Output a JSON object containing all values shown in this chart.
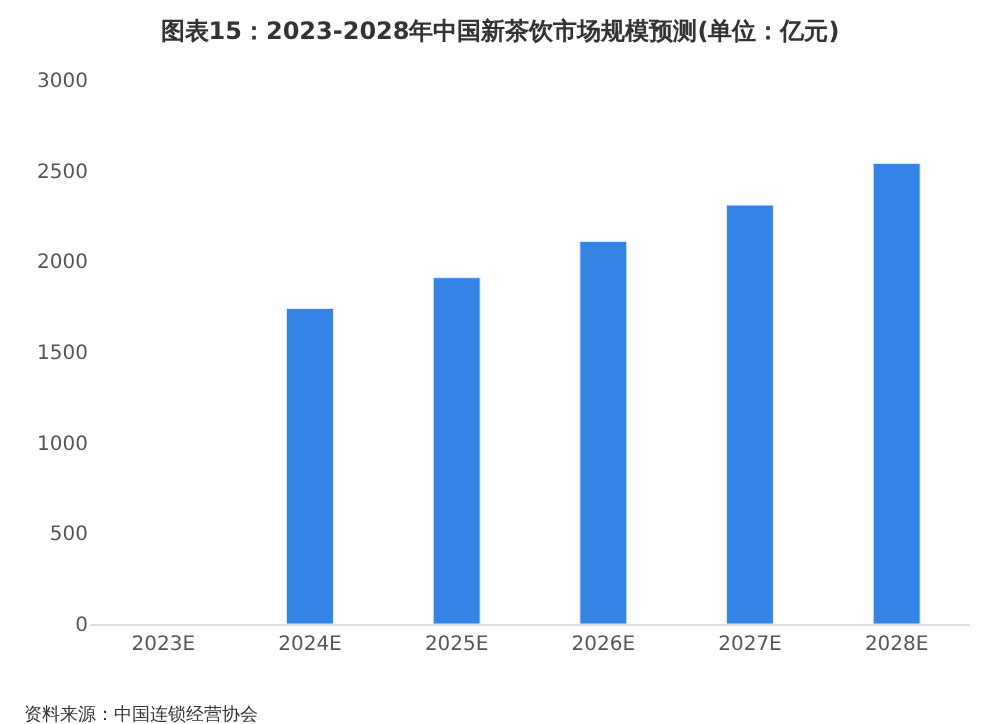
{
  "chart_data": {
    "type": "bar",
    "title": "图表15：2023-2028年中国新茶饮市场规模预测(单位：亿元)",
    "categories": [
      "2023E",
      "2024E",
      "2025E",
      "2026E",
      "2027E",
      "2028E"
    ],
    "values": [
      null,
      1740,
      1910,
      2110,
      2310,
      2540
    ],
    "color": "#3683e6",
    "ylim": [
      0,
      3000
    ],
    "yticks": [
      0,
      500,
      1000,
      1500,
      2000,
      2500,
      3000
    ],
    "annotations": [
      "资料来源：中国连锁经营协会"
    ]
  }
}
